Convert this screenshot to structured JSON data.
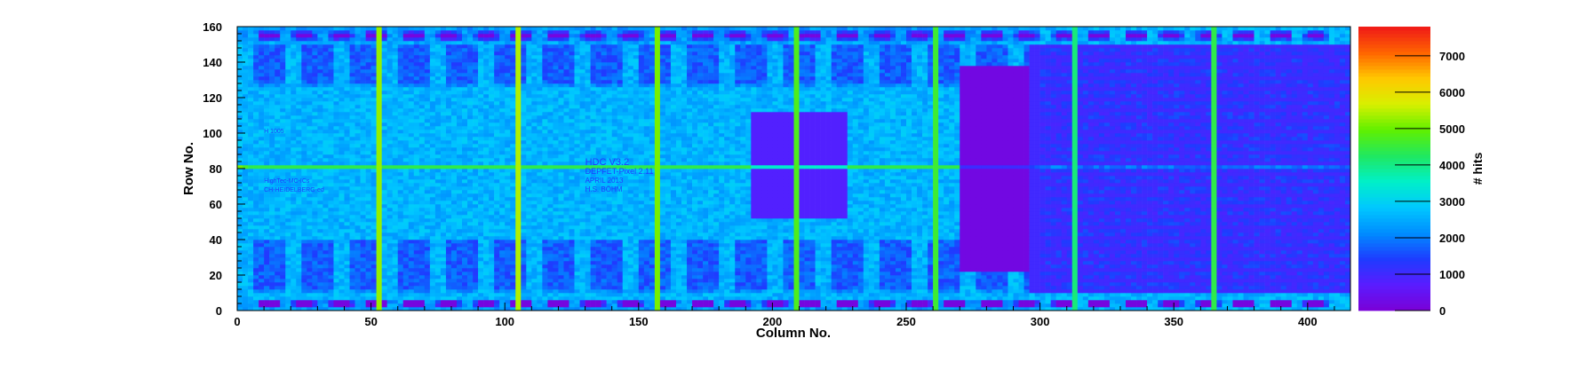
{
  "chart_data": {
    "type": "heatmap",
    "xlabel": "Column No.",
    "ylabel": "Row No.",
    "zlabel": "# hits",
    "xlim": [
      0,
      416
    ],
    "ylim": [
      0,
      160
    ],
    "zlim": [
      0,
      7800
    ],
    "x_ticks": [
      0,
      50,
      100,
      150,
      200,
      250,
      300,
      350,
      400
    ],
    "y_ticks": [
      0,
      20,
      40,
      60,
      80,
      100,
      120,
      140,
      160
    ],
    "z_ticks": [
      0,
      1000,
      2000,
      3000,
      4000,
      5000,
      6000,
      7000
    ],
    "colorscale": [
      "#7b00d6",
      "#5a1cff",
      "#1e3cff",
      "#008cff",
      "#00c8ff",
      "#00f0c8",
      "#20e860",
      "#60f000",
      "#d8f000",
      "#ffc800",
      "#ff6400",
      "#f01818"
    ],
    "background_hits": 2600,
    "hot_columns": [
      {
        "x": 52,
        "hits": 6200
      },
      {
        "x": 104,
        "hits": 6400
      },
      {
        "x": 156,
        "hits": 6000
      },
      {
        "x": 208,
        "hits": 5600
      },
      {
        "x": 260,
        "hits": 5400
      },
      {
        "x": 312,
        "hits": 4800
      },
      {
        "x": 364,
        "hits": 5200
      }
    ],
    "hot_row": {
      "y": 80,
      "hits": 6200
    },
    "low_regions": [
      {
        "x": [
          192,
          228
        ],
        "y": [
          52,
          112
        ],
        "hits": 800
      },
      {
        "x": [
          270,
          296
        ],
        "y": [
          22,
          138
        ],
        "hits": 200
      },
      {
        "x": [
          296,
          416
        ],
        "y": [
          10,
          150
        ],
        "hits": 1000
      }
    ],
    "chip_label_lines": [
      "HDC V3.2",
      "DEPFET-Pixel 2.11",
      "APRIL 2013",
      "H.S. BÖHM"
    ],
    "chip_small_labels": [
      "H 1005",
      "HighTec-MC-ICs",
      "CH-HEIDELBERG-ed"
    ]
  }
}
